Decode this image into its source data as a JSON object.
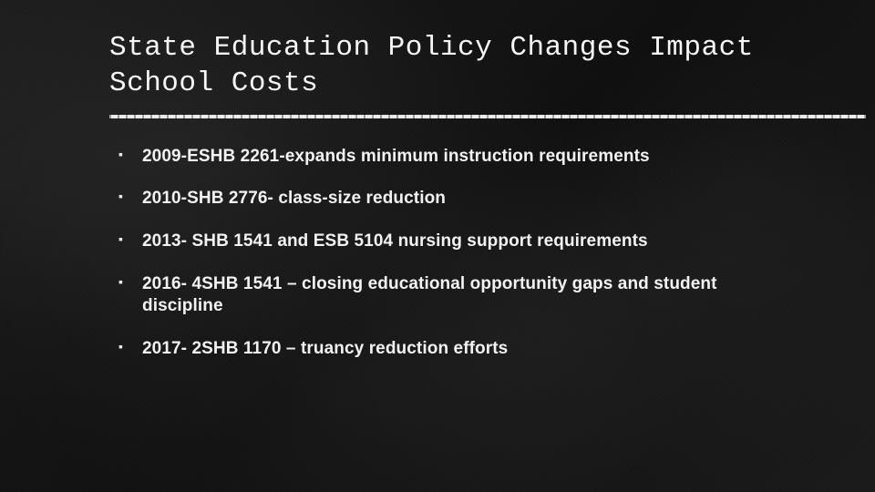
{
  "slide": {
    "title": "State Education Policy Changes Impact School Costs",
    "title_font": "monospace",
    "title_fontsize": 31,
    "title_color": "#f5f5f5",
    "divider_color": "#eaeaea",
    "divider_thickness": 4,
    "background_color": "#151515",
    "bullet_color": "#f2f2f2",
    "bullet_fontsize": 19,
    "bullet_marker": "▪",
    "bullets": [
      "2009-ESHB 2261-expands minimum instruction requirements",
      "2010-SHB 2776- class-size reduction",
      "2013- SHB 1541 and ESB 5104 nursing support requirements",
      "2016- 4SHB 1541 – closing educational opportunity gaps and student discipline",
      "2017- 2SHB 1170 – truancy reduction efforts"
    ]
  }
}
